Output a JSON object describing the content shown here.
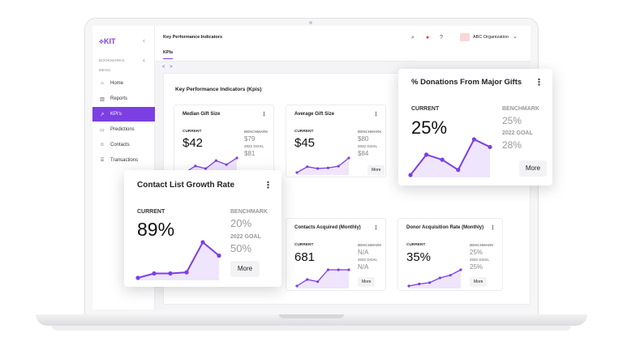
{
  "app": {
    "logo": "KIT",
    "collapse_icon": "chevron-left-icon",
    "sections": {
      "bookmarks": "BOOKMARKS",
      "menu": "MENU"
    }
  },
  "sidebar": {
    "items": [
      {
        "label": "Home",
        "icon": "home-icon"
      },
      {
        "label": "Reports",
        "icon": "bar-chart-icon"
      },
      {
        "label": "KPI's",
        "icon": "trend-icon",
        "active": true
      },
      {
        "label": "Predictions",
        "icon": "predictions-icon"
      },
      {
        "label": "Contacts",
        "icon": "person-icon"
      },
      {
        "label": "Transactions",
        "icon": "bank-icon"
      }
    ]
  },
  "header": {
    "title": "Key Performance Indicators",
    "org": "ABC Organization",
    "tab": "KPIs",
    "nav_arrows": "< >"
  },
  "main": {
    "title": "Key Performance Indicators (Kpis)"
  },
  "cards": {
    "median": {
      "title": "Median Gift Size",
      "current_label": "CURRENT",
      "current": "$42",
      "bench_label": "BENCHMARK",
      "bench": "$79",
      "goal_label": "2022 GOAL",
      "goal": "$81"
    },
    "average": {
      "title": "Average Gift Size",
      "current_label": "CURRENT",
      "current": "$45",
      "bench_label": "BENCHMARK",
      "bench": "$80",
      "goal_label": "2022 GOAL",
      "goal": "$84",
      "more": "More"
    },
    "contacts": {
      "title": "Contacts Acquired (Monthly)",
      "current_label": "CURRENT",
      "current": "681",
      "bench_label": "BENCHMARK",
      "bench": "N/A",
      "goal_label": "2022 GOAL",
      "goal": "N/A",
      "more": "More"
    },
    "donor": {
      "title": "Donor Acquisition Rate (Monthly)",
      "current_label": "CURRENT",
      "current": "35%",
      "bench_label": "BENCHMARK",
      "bench": "25%",
      "goal_label": "2022 GOAL",
      "goal": "25%",
      "more": "More"
    }
  },
  "floats": {
    "growth": {
      "title": "Contact List Growth Rate",
      "current_label": "CURRENT",
      "current": "89%",
      "bench_label": "BENCHMARK",
      "bench": "20%",
      "goal_label": "2022 GOAL",
      "goal": "50%",
      "more": "More"
    },
    "donations": {
      "title": "% Donations From Major Gifts",
      "current_label": "CURRENT",
      "current": "25%",
      "bench_label": "BENCHMARK",
      "bench": "25%",
      "goal_label": "2022 GOAL",
      "goal": "28%",
      "more": "More"
    }
  },
  "colors": {
    "accent": "#7b3fe4",
    "spark_fill": "#efe5fc"
  },
  "sparklines": {
    "median": [
      1,
      2,
      1.6,
      2.8,
      2.2,
      3.2
    ],
    "average": [
      1,
      2,
      1.7,
      1.8,
      2.1,
      3.5
    ],
    "contacts": [
      1,
      1.6,
      1.4,
      2.5,
      2.5,
      2.5
    ],
    "donor": [
      1,
      1.3,
      1.5,
      2.2,
      2.6,
      3.4
    ],
    "growth": [
      1,
      1.4,
      1.4,
      1.5,
      4.2,
      3.0
    ],
    "donations": [
      1,
      2.6,
      2.2,
      1.4,
      3.8,
      3.2
    ]
  }
}
